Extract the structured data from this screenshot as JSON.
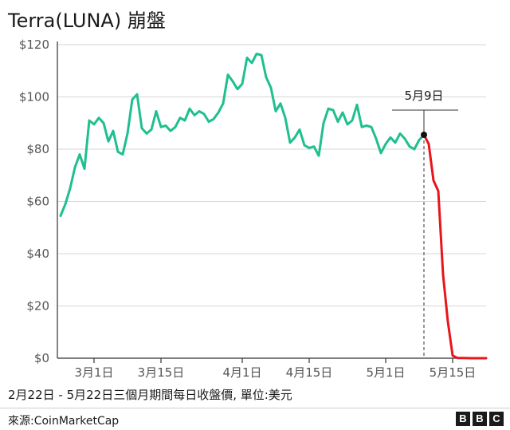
{
  "title": "Terra(LUNA) 崩盤",
  "subtitle": "2月22日 - 5月22日三個月期間每日收盤價, 單位:美元",
  "source": "來源:CoinMarketCap",
  "logo_letters": [
    "B",
    "B",
    "C"
  ],
  "colors": {
    "before": "#1fbf8f",
    "after": "#e8151b",
    "grid": "#d6d6d6",
    "axis": "#333333"
  },
  "chart_data": {
    "type": "line",
    "title": "Terra(LUNA) 崩盤",
    "xlabel": "",
    "ylabel": "",
    "ylim": [
      0,
      120
    ],
    "y_ticks": [
      {
        "value": 0,
        "label": "$0"
      },
      {
        "value": 20,
        "label": "$20"
      },
      {
        "value": 40,
        "label": "$40"
      },
      {
        "value": 60,
        "label": "$60"
      },
      {
        "value": 80,
        "label": "$80"
      },
      {
        "value": 100,
        "label": "$100"
      },
      {
        "value": 120,
        "label": "$120"
      }
    ],
    "x_ticks": [
      {
        "date": "2022-03-01",
        "label": "3月1日"
      },
      {
        "date": "2022-03-15",
        "label": "3月15日"
      },
      {
        "date": "2022-04-01",
        "label": "4月1日"
      },
      {
        "date": "2022-04-15",
        "label": "4月15日"
      },
      {
        "date": "2022-05-01",
        "label": "5月1日"
      },
      {
        "date": "2022-05-15",
        "label": "5月15日"
      }
    ],
    "annotation": {
      "date": "2022-05-09",
      "label": "5月9日",
      "value": 85.5
    },
    "grid": "horizontal",
    "series": [
      {
        "values": [
          [
            "2022-02-22",
            54.5
          ],
          [
            "2022-02-23",
            59
          ],
          [
            "2022-02-24",
            65
          ],
          [
            "2022-02-25",
            73
          ],
          [
            "2022-02-26",
            78
          ],
          [
            "2022-02-27",
            72.5
          ],
          [
            "2022-02-28",
            91
          ],
          [
            "2022-03-01",
            89.5
          ],
          [
            "2022-03-02",
            92
          ],
          [
            "2022-03-03",
            90
          ],
          [
            "2022-03-04",
            83
          ],
          [
            "2022-03-05",
            87
          ],
          [
            "2022-03-06",
            79
          ],
          [
            "2022-03-07",
            78
          ],
          [
            "2022-03-08",
            86
          ],
          [
            "2022-03-09",
            99
          ],
          [
            "2022-03-10",
            101
          ],
          [
            "2022-03-11",
            88
          ],
          [
            "2022-03-12",
            86
          ],
          [
            "2022-03-13",
            87.5
          ],
          [
            "2022-03-14",
            94.5
          ],
          [
            "2022-03-15",
            88.5
          ],
          [
            "2022-03-16",
            89
          ],
          [
            "2022-03-17",
            87
          ],
          [
            "2022-03-18",
            88.5
          ],
          [
            "2022-03-19",
            92
          ],
          [
            "2022-03-20",
            91
          ],
          [
            "2022-03-21",
            95.5
          ],
          [
            "2022-03-22",
            93
          ],
          [
            "2022-03-23",
            94.5
          ],
          [
            "2022-03-24",
            93.5
          ],
          [
            "2022-03-25",
            90.5
          ],
          [
            "2022-03-26",
            91.5
          ],
          [
            "2022-03-27",
            94
          ],
          [
            "2022-03-28",
            97.5
          ],
          [
            "2022-03-29",
            108.5
          ],
          [
            "2022-03-30",
            106
          ],
          [
            "2022-03-31",
            103
          ],
          [
            "2022-04-01",
            105
          ],
          [
            "2022-04-02",
            115
          ],
          [
            "2022-04-03",
            113
          ],
          [
            "2022-04-04",
            116.5
          ],
          [
            "2022-04-05",
            116
          ],
          [
            "2022-04-06",
            107.5
          ],
          [
            "2022-04-07",
            103.5
          ],
          [
            "2022-04-08",
            94.5
          ],
          [
            "2022-04-09",
            97.5
          ],
          [
            "2022-04-10",
            92
          ],
          [
            "2022-04-11",
            82.5
          ],
          [
            "2022-04-12",
            84.5
          ],
          [
            "2022-04-13",
            87.5
          ],
          [
            "2022-04-14",
            81.5
          ],
          [
            "2022-04-15",
            80.5
          ],
          [
            "2022-04-16",
            81
          ],
          [
            "2022-04-17",
            77.5
          ],
          [
            "2022-04-18",
            90
          ],
          [
            "2022-04-19",
            95.5
          ],
          [
            "2022-04-20",
            95
          ],
          [
            "2022-04-21",
            90.5
          ],
          [
            "2022-04-22",
            94
          ],
          [
            "2022-04-23",
            89.5
          ],
          [
            "2022-04-24",
            91
          ],
          [
            "2022-04-25",
            97
          ],
          [
            "2022-04-26",
            88.5
          ],
          [
            "2022-04-27",
            89
          ],
          [
            "2022-04-28",
            88.5
          ],
          [
            "2022-04-29",
            84
          ],
          [
            "2022-04-30",
            78.5
          ],
          [
            "2022-05-01",
            82
          ],
          [
            "2022-05-02",
            84.5
          ],
          [
            "2022-05-03",
            82.5
          ],
          [
            "2022-05-04",
            86
          ],
          [
            "2022-05-05",
            84
          ],
          [
            "2022-05-06",
            81
          ],
          [
            "2022-05-07",
            80
          ],
          [
            "2022-05-08",
            83.5
          ],
          [
            "2022-05-09",
            85.5
          ]
        ]
      },
      {
        "values": [
          [
            "2022-05-09",
            85.5
          ],
          [
            "2022-05-10",
            82
          ],
          [
            "2022-05-11",
            68
          ],
          [
            "2022-05-12",
            64
          ],
          [
            "2022-05-13",
            32
          ],
          [
            "2022-05-14",
            14
          ],
          [
            "2022-05-15",
            1
          ],
          [
            "2022-05-16",
            0.1
          ],
          [
            "2022-05-17",
            0.05
          ],
          [
            "2022-05-18",
            0.02
          ],
          [
            "2022-05-19",
            0.01
          ],
          [
            "2022-05-20",
            0.01
          ],
          [
            "2022-05-21",
            0.01
          ],
          [
            "2022-05-22",
            0.01
          ]
        ]
      }
    ]
  }
}
